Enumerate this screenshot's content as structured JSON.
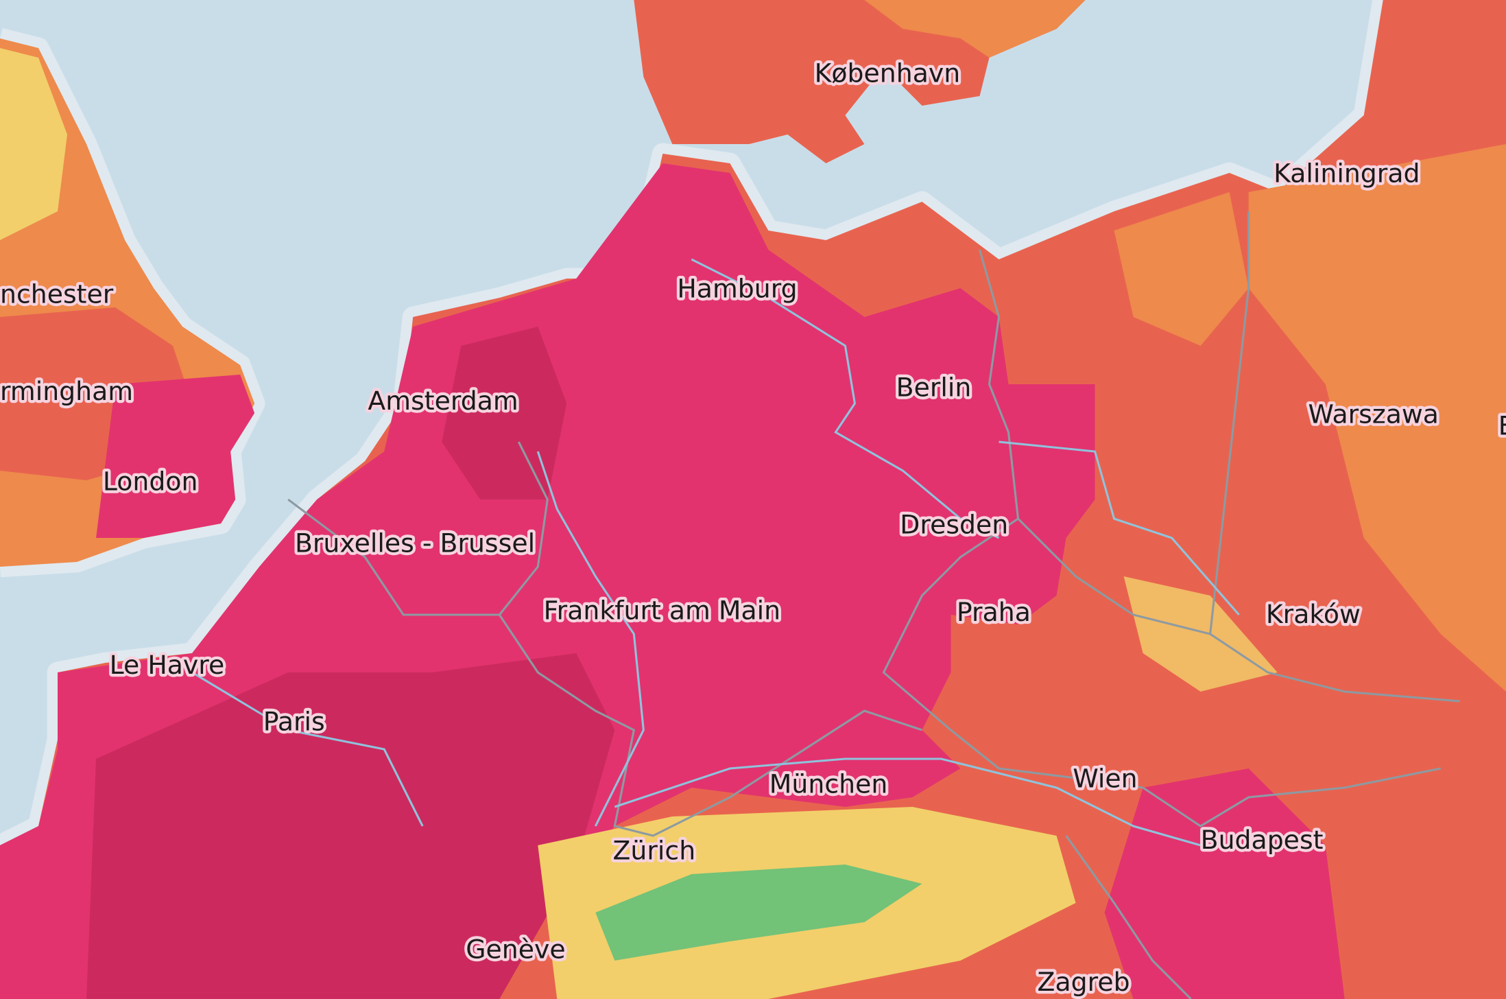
{
  "map": {
    "layer": "temperature heatmap",
    "colors": {
      "sea": "#c9dde9",
      "land_warm": "#ee8a4c",
      "land_hot": "#e8634f",
      "land_very_hot": "#e2336f",
      "land_extreme": "#cc2a5e",
      "mountain_green": "#5cbf7a",
      "mountain_yellow": "#f2cf6a",
      "border": "#8d9aa2",
      "river": "#8fc3dc"
    },
    "cities": [
      {
        "name": "København"
      },
      {
        "name": "Kaliningrad"
      },
      {
        "name": "Hamburg"
      },
      {
        "name": "nchester"
      },
      {
        "name": "rmingham"
      },
      {
        "name": "Amsterdam"
      },
      {
        "name": "Berlin"
      },
      {
        "name": "Warszawa"
      },
      {
        "name": "E"
      },
      {
        "name": "London"
      },
      {
        "name": "Dresden"
      },
      {
        "name": "Bruxelles - Brussel"
      },
      {
        "name": "Frankfurt am Main"
      },
      {
        "name": "Praha"
      },
      {
        "name": "Kraków"
      },
      {
        "name": "Le Havre"
      },
      {
        "name": "Paris"
      },
      {
        "name": "Wien"
      },
      {
        "name": "München"
      },
      {
        "name": "Budapest"
      },
      {
        "name": "Zürich"
      },
      {
        "name": "Genève"
      },
      {
        "name": "Zagreb"
      }
    ]
  }
}
